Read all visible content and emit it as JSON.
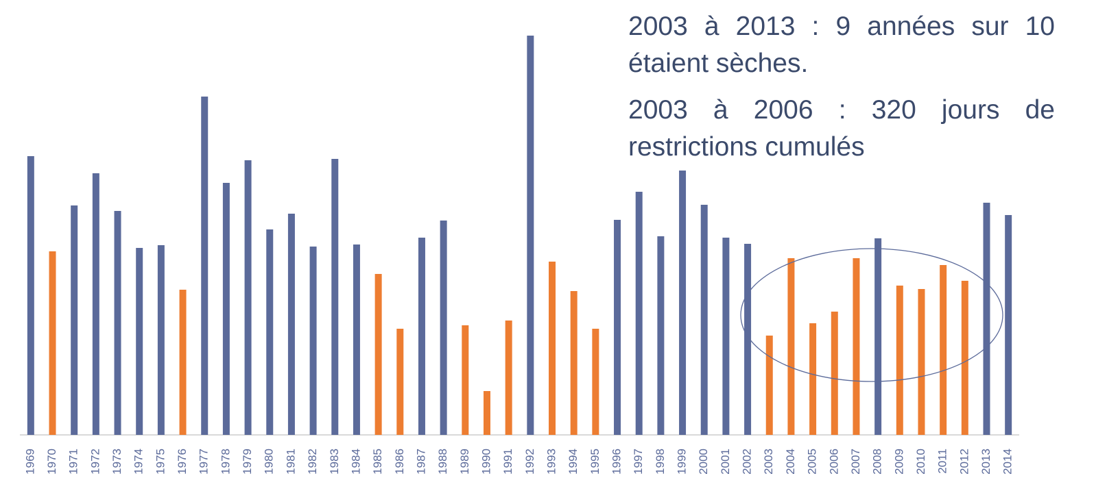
{
  "chart_data": {
    "type": "bar",
    "annotations": [
      "2003 à 2013 : 9 années sur 10 étaient sèches.",
      "2003 à 2006 : 320 jours de restrictions cumulés"
    ],
    "categories": [
      "1969",
      "1970",
      "1971",
      "1972",
      "1973",
      "1974",
      "1975",
      "1976",
      "1977",
      "1978",
      "1979",
      "1980",
      "1981",
      "1982",
      "1983",
      "1984",
      "1985",
      "1986",
      "1987",
      "1988",
      "1989",
      "1990",
      "1991",
      "1992",
      "1993",
      "1994",
      "1995",
      "1996",
      "1997",
      "1998",
      "1999",
      "2000",
      "2001",
      "2002",
      "2003",
      "2004",
      "2005",
      "2006",
      "2007",
      "2008",
      "2009",
      "2010",
      "2011",
      "2012",
      "2013",
      "2014"
    ],
    "values": [
      407,
      268,
      335,
      382,
      327,
      273,
      277,
      212,
      494,
      368,
      401,
      300,
      323,
      275,
      403,
      278,
      235,
      155,
      288,
      313,
      160,
      64,
      167,
      583,
      253,
      210,
      155,
      314,
      355,
      290,
      386,
      336,
      288,
      279,
      145,
      258,
      163,
      180,
      258,
      287,
      218,
      213,
      248,
      225,
      339,
      321
    ],
    "colors": [
      "#5b6a9a",
      "#ed7d31",
      "#5b6a9a",
      "#5b6a9a",
      "#5b6a9a",
      "#5b6a9a",
      "#5b6a9a",
      "#ed7d31",
      "#5b6a9a",
      "#5b6a9a",
      "#5b6a9a",
      "#5b6a9a",
      "#5b6a9a",
      "#5b6a9a",
      "#5b6a9a",
      "#5b6a9a",
      "#ed7d31",
      "#ed7d31",
      "#5b6a9a",
      "#5b6a9a",
      "#ed7d31",
      "#ed7d31",
      "#ed7d31",
      "#5b6a9a",
      "#ed7d31",
      "#ed7d31",
      "#ed7d31",
      "#5b6a9a",
      "#5b6a9a",
      "#5b6a9a",
      "#5b6a9a",
      "#5b6a9a",
      "#5b6a9a",
      "#5b6a9a",
      "#ed7d31",
      "#ed7d31",
      "#ed7d31",
      "#ed7d31",
      "#ed7d31",
      "#5b6a9a",
      "#ed7d31",
      "#ed7d31",
      "#ed7d31",
      "#ed7d31",
      "#5b6a9a",
      "#5b6a9a"
    ],
    "ylim": [
      0,
      600
    ]
  }
}
